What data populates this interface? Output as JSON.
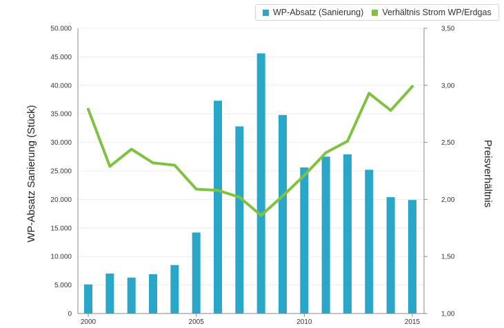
{
  "chart_data": {
    "type": "bar+line",
    "title": "",
    "legend_position": "top-right",
    "grid": true,
    "x": [
      2000,
      2001,
      2002,
      2003,
      2004,
      2005,
      2006,
      2007,
      2008,
      2009,
      2010,
      2011,
      2012,
      2013,
      2014,
      2015
    ],
    "x_ticks": [
      "2000",
      "2005",
      "2010",
      "2015"
    ],
    "xlim": [
      2000,
      2015
    ],
    "y_left": {
      "label": "WP-Absatz Sanierung (Stück)",
      "range": [
        0,
        50000
      ],
      "ticks": [
        "0",
        "5.000",
        "10.000",
        "15.000",
        "20.000",
        "25.000",
        "30.000",
        "35.000",
        "40.000",
        "45.000",
        "50.000"
      ]
    },
    "y_right": {
      "label": "Preisverhältnis",
      "range": [
        1.0,
        3.5
      ],
      "ticks": [
        "1,00",
        "1,50",
        "2,00",
        "2,50",
        "3,00",
        "3,50"
      ]
    },
    "series": [
      {
        "name": "WP-Absatz (Sanierung)",
        "type": "bar",
        "axis": "left",
        "color": "#2aa6c8",
        "values": [
          5100,
          7000,
          6300,
          6900,
          8500,
          14200,
          37300,
          32800,
          45600,
          34800,
          25600,
          27500,
          27900,
          25200,
          20400,
          19900
        ]
      },
      {
        "name": "Verhältnis Strom WP/Erdgas",
        "type": "line",
        "axis": "right",
        "color": "#7fc242",
        "values": [
          2.79,
          2.29,
          2.44,
          2.32,
          2.3,
          2.09,
          2.08,
          2.02,
          1.86,
          2.03,
          2.21,
          2.41,
          2.51,
          2.93,
          2.78,
          2.99
        ]
      }
    ]
  }
}
